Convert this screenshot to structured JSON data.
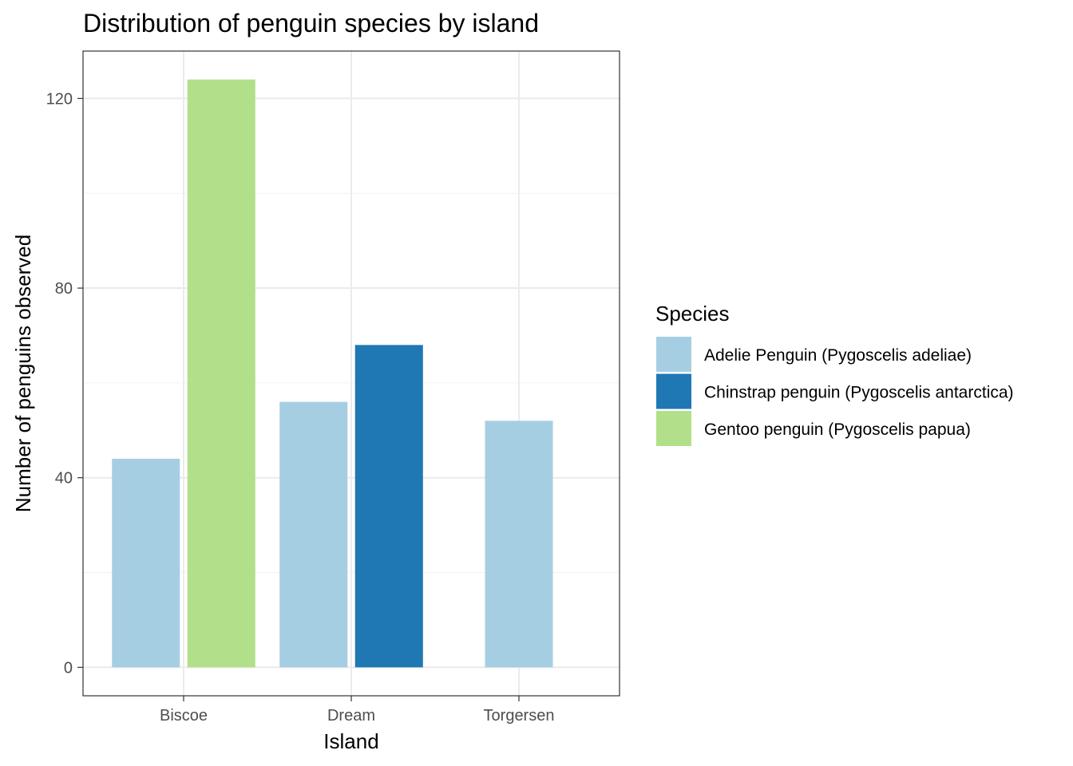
{
  "chart_data": {
    "type": "bar",
    "title": "Distribution of penguin species by island",
    "xlabel": "Island",
    "ylabel": "Number of penguins observed",
    "categories": [
      "Biscoe",
      "Dream",
      "Torgersen"
    ],
    "series": [
      {
        "name": "Adelie Penguin (Pygoscelis adeliae)",
        "color": "#a6cee3",
        "values": [
          44,
          56,
          52
        ]
      },
      {
        "name": "Chinstrap penguin (Pygoscelis antarctica)",
        "color": "#1f78b4",
        "values": [
          null,
          68,
          null
        ]
      },
      {
        "name": "Gentoo penguin (Pygoscelis papua)",
        "color": "#b2df8a",
        "values": [
          124,
          null,
          null
        ]
      }
    ],
    "ylim": [
      -6,
      130
    ],
    "yticks": [
      0,
      40,
      80,
      120
    ],
    "grid": true,
    "legend": {
      "title": "Species",
      "position": "right"
    }
  }
}
